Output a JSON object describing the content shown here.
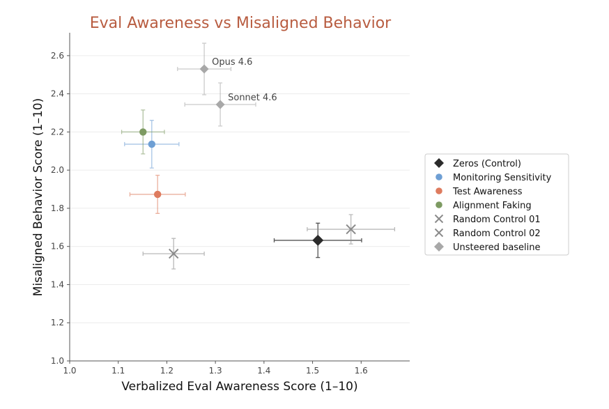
{
  "chart_data": {
    "type": "scatter",
    "title": "Eval Awareness vs Misaligned Behavior",
    "xlabel": "Verbalized Eval Awareness Score (1–10)",
    "ylabel": "Misaligned Behavior Score (1–10)",
    "xlim": [
      1.0,
      1.7
    ],
    "ylim": [
      1.0,
      2.72
    ],
    "xticks": [
      1.0,
      1.1,
      1.2,
      1.3,
      1.4,
      1.5,
      1.6
    ],
    "yticks": [
      1.0,
      1.2,
      1.4,
      1.6,
      1.8,
      2.0,
      2.2,
      2.4,
      2.6
    ],
    "grid": "horizontal",
    "legend_position": "right",
    "title_color": "#b85c40",
    "series": [
      {
        "name": "Zeros (Control)",
        "marker": "diamond",
        "color": "#2b2b2b",
        "points": [
          {
            "x": 1.511,
            "y": 1.632,
            "xerr": 0.09,
            "yerr": 0.09
          }
        ]
      },
      {
        "name": "Monitoring Sensitivity",
        "marker": "circle",
        "color": "#6e9fd4",
        "points": [
          {
            "x": 1.169,
            "y": 2.136,
            "xerr": 0.056,
            "yerr": 0.125
          }
        ]
      },
      {
        "name": "Test Awareness",
        "marker": "circle",
        "color": "#de7b5e",
        "points": [
          {
            "x": 1.181,
            "y": 1.873,
            "xerr": 0.057,
            "yerr": 0.1
          }
        ]
      },
      {
        "name": "Alignment Faking",
        "marker": "circle",
        "color": "#7d9a62",
        "points": [
          {
            "x": 1.151,
            "y": 2.2,
            "xerr": 0.044,
            "yerr": 0.115
          }
        ]
      },
      {
        "name": "Random Control 01",
        "marker": "x",
        "color": "#8a8a8a",
        "points": [
          {
            "x": 1.214,
            "y": 1.562,
            "xerr": 0.063,
            "yerr": 0.08
          }
        ]
      },
      {
        "name": "Random Control 02",
        "marker": "x",
        "color": "#8a8a8a",
        "points": [
          {
            "x": 1.579,
            "y": 1.69,
            "xerr": 0.09,
            "yerr": 0.077
          }
        ]
      },
      {
        "name": "Unsteered baseline",
        "marker": "diamond",
        "color": "#a8a8a8",
        "points": [
          {
            "x": 1.277,
            "y": 2.53,
            "xerr": 0.055,
            "yerr": 0.135,
            "label": "Opus 4.6"
          },
          {
            "x": 1.31,
            "y": 2.344,
            "xerr": 0.073,
            "yerr": 0.113,
            "label": "Sonnet 4.6"
          }
        ]
      }
    ]
  }
}
